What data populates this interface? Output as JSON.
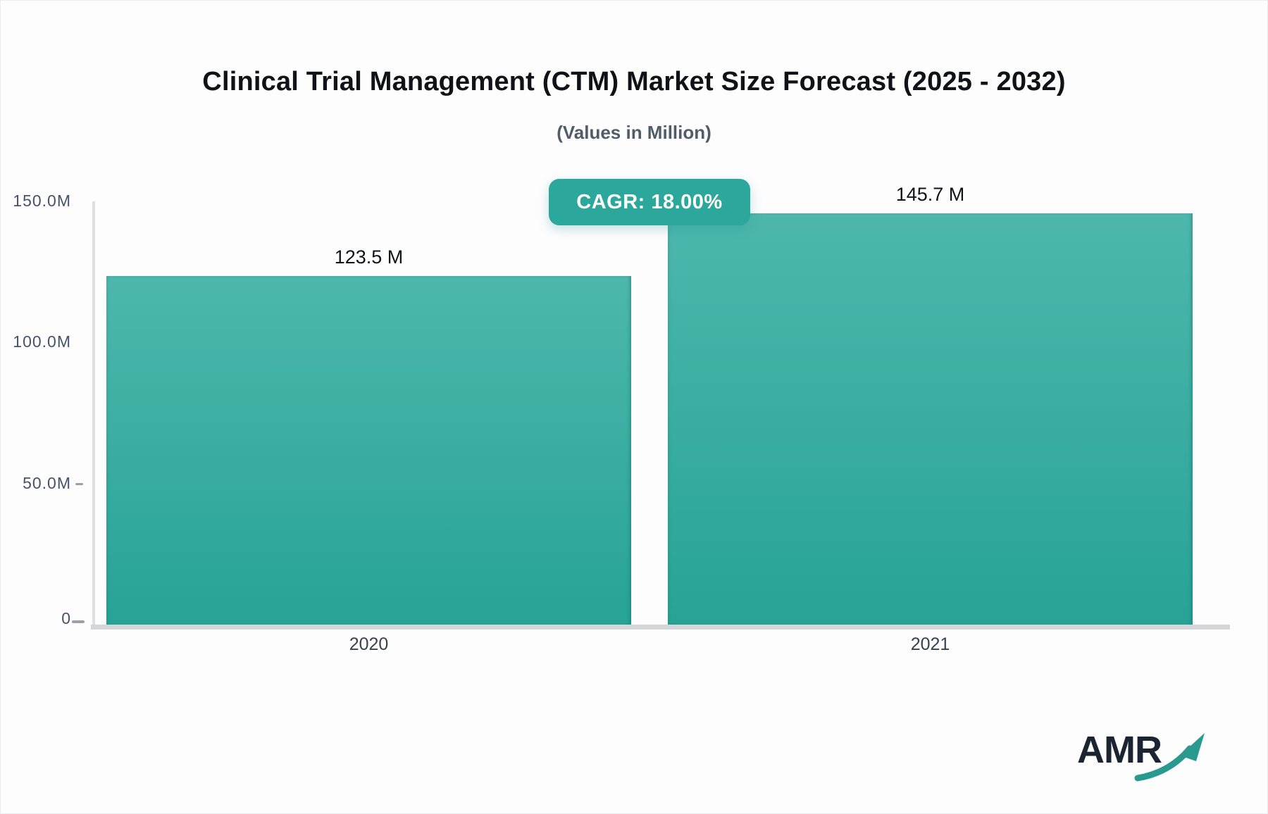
{
  "header": {
    "title": "Clinical Trial Management (CTM) Market Size Forecast (2025 - 2032)",
    "subtitle": "(Values in Million)"
  },
  "chart_data": {
    "type": "bar",
    "title": "Clinical Trial Management (CTM) Market Size Forecast (2025 - 2032)",
    "subtitle": "(Values in Million)",
    "categories": [
      "2020",
      "2021"
    ],
    "values": [
      123.5,
      145.7
    ],
    "data_labels": [
      "123.5 M",
      "145.7 M"
    ],
    "xlabel": "",
    "ylabel": "",
    "ylim": [
      0,
      150
    ],
    "yticks": [
      {
        "value": 150,
        "label": "150.0M",
        "dash": false
      },
      {
        "value": 100,
        "label": "100.0M",
        "dash": false
      },
      {
        "value": 50,
        "label": "50.0M",
        "dash": true
      },
      {
        "value": 0,
        "label": "0",
        "dash": true
      }
    ],
    "grid": false,
    "legend": "none",
    "annotations": [
      {
        "text": "CAGR: 18.00%"
      }
    ],
    "colors": {
      "bar_gradient_top": "#4db7ad",
      "bar_gradient_bottom": "#27a396",
      "badge_background": "#2ba79b",
      "badge_text": "#ffffff",
      "axis_line": "#dcdfe3",
      "baseline": "#d3d7da",
      "tick_label": "#47536a",
      "value_label": "#101418"
    }
  },
  "logo": {
    "text": "AMR",
    "text_color": "#1b2531",
    "arrow_color": "#2a9a91"
  }
}
